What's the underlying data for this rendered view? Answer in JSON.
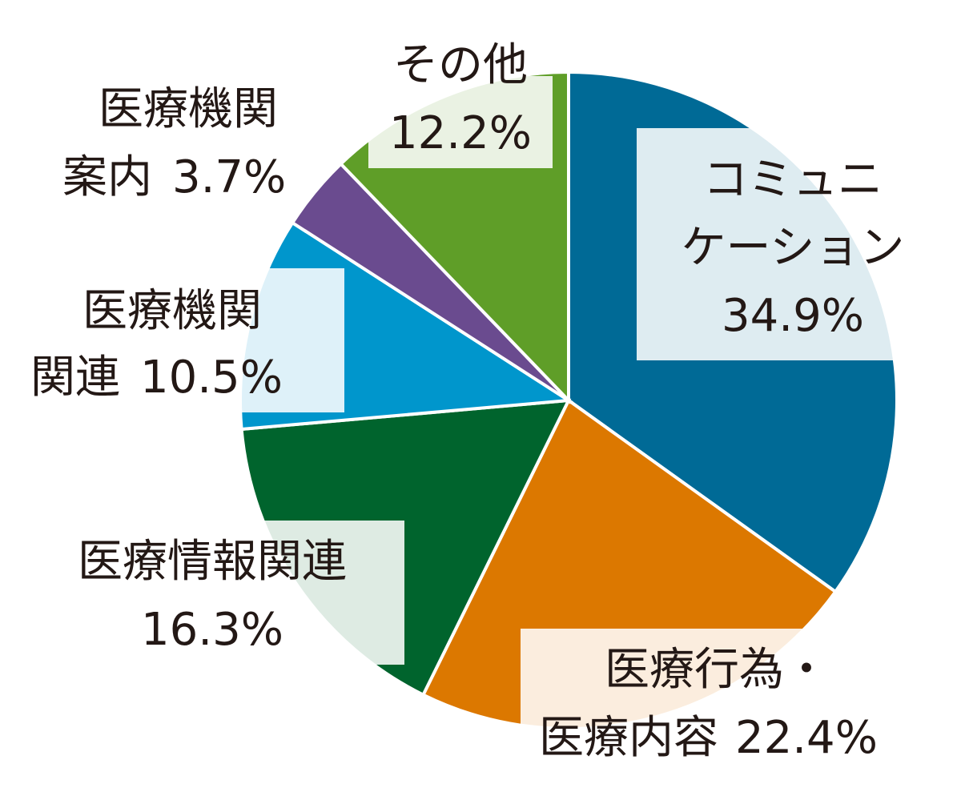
{
  "chart_data": {
    "type": "pie",
    "categories": [
      "コミュニケーション",
      "医療行為・医療内容",
      "医療情報関連",
      "医療機関関連",
      "医療機関案内",
      "その他"
    ],
    "values": [
      34.9,
      22.4,
      16.3,
      10.5,
      3.7,
      12.2
    ],
    "value_labels": [
      "34.9%",
      "22.4%",
      "16.3%",
      "10.5%",
      "3.7%",
      "12.2%"
    ],
    "colors": [
      "#006a96",
      "#dc7800",
      "#00642d",
      "#0096cc",
      "#6a4b8f",
      "#5f9e28"
    ]
  }
}
